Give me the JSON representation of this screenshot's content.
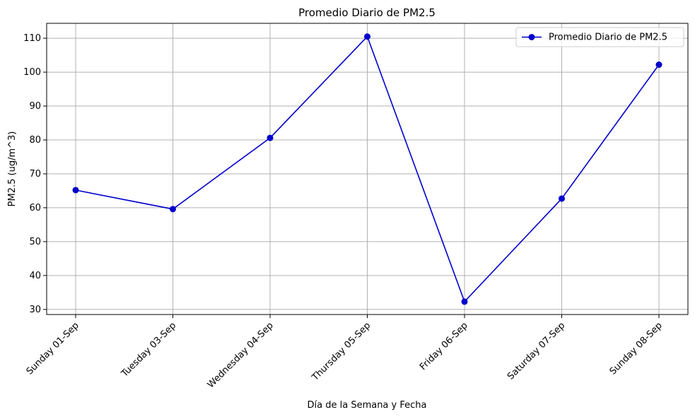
{
  "chart_data": {
    "type": "line",
    "title": "Promedio Diario de PM2.5",
    "x_label": "Día de la Semana y Fecha",
    "y_label": "PM2.5 (ug/m^3)",
    "categories": [
      "Sunday 01-Sep",
      "Tuesday 03-Sep",
      "Wednesday 04-Sep",
      "Thursday 05-Sep",
      "Friday 06-Sep",
      "Saturday 07-Sep",
      "Sunday 08-Sep"
    ],
    "series": [
      {
        "name": "Promedio Diario de PM2.5",
        "color": "#0000cc",
        "values": [
          65.2,
          59.6,
          80.6,
          110.5,
          32.3,
          62.7,
          102.2
        ]
      }
    ],
    "ylim": [
      28.5,
      114.4
    ],
    "yticks": [
      30,
      40,
      50,
      60,
      70,
      80,
      90,
      100,
      110
    ],
    "grid": true,
    "legend": "upper-right"
  }
}
